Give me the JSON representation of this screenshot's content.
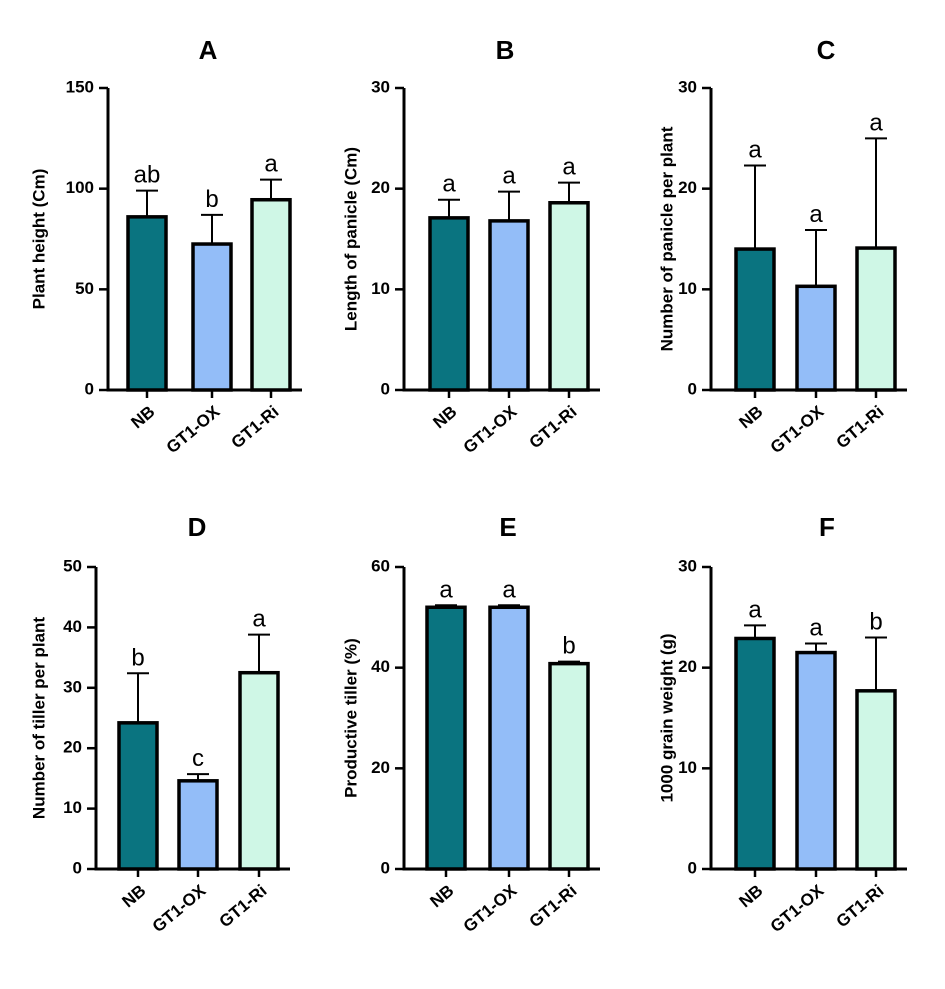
{
  "chart_data": [
    {
      "type": "bar",
      "panel": "A",
      "ylabel": "Plant height (Cm)",
      "ylim": [
        0,
        150
      ],
      "yticks": [
        0,
        50,
        100,
        150
      ],
      "categories": [
        "NB",
        "GT1-OX",
        "GT1-Ri"
      ],
      "values": [
        86,
        72.5,
        94.5
      ],
      "errors": [
        13,
        14.5,
        10
      ],
      "significance": [
        "ab",
        "b",
        "a"
      ],
      "colors": [
        "#0a7480",
        "#93bdf8",
        "#cff7e6"
      ]
    },
    {
      "type": "bar",
      "panel": "B",
      "ylabel": "Length of panicle (Cm)",
      "ylim": [
        0,
        30
      ],
      "yticks": [
        0,
        10,
        20,
        30
      ],
      "categories": [
        "NB",
        "GT1-OX",
        "GT1-Ri"
      ],
      "values": [
        17.1,
        16.8,
        18.6
      ],
      "errors": [
        1.8,
        2.9,
        2.0
      ],
      "significance": [
        "a",
        "a",
        "a"
      ],
      "colors": [
        "#0a7480",
        "#93bdf8",
        "#cff7e6"
      ]
    },
    {
      "type": "bar",
      "panel": "C",
      "ylabel": "Number of panicle per plant",
      "ylim": [
        0,
        30
      ],
      "yticks": [
        0,
        10,
        20,
        30
      ],
      "categories": [
        "NB",
        "GT1-OX",
        "GT1-Ri"
      ],
      "values": [
        14,
        10.3,
        14.1
      ],
      "errors": [
        8.3,
        5.6,
        10.9
      ],
      "significance": [
        "a",
        "a",
        "a"
      ],
      "colors": [
        "#0a7480",
        "#93bdf8",
        "#cff7e6"
      ]
    },
    {
      "type": "bar",
      "panel": "D",
      "ylabel": "Number of tiller  per plant",
      "ylim": [
        0,
        50
      ],
      "yticks": [
        0,
        10,
        20,
        30,
        40,
        50
      ],
      "categories": [
        "NB",
        "GT1-OX",
        "GT1-Ri"
      ],
      "values": [
        24.2,
        14.6,
        32.5
      ],
      "errors": [
        8.2,
        1.1,
        6.3
      ],
      "significance": [
        "b",
        "c",
        "a"
      ],
      "colors": [
        "#0a7480",
        "#93bdf8",
        "#cff7e6"
      ]
    },
    {
      "type": "bar",
      "panel": "E",
      "ylabel": "Productive tiller (%)",
      "ylim": [
        0,
        60
      ],
      "yticks": [
        0,
        20,
        40,
        60
      ],
      "categories": [
        "NB",
        "GT1-OX",
        "GT1-Ri"
      ],
      "values": [
        52,
        52,
        40.8
      ],
      "errors": [
        0.4,
        0.4,
        0.4
      ],
      "significance": [
        "a",
        "a",
        "b"
      ],
      "colors": [
        "#0a7480",
        "#93bdf8",
        "#cff7e6"
      ]
    },
    {
      "type": "bar",
      "panel": "F",
      "ylabel": "1000 grain weight (g)",
      "ylim": [
        0,
        30
      ],
      "yticks": [
        0,
        10,
        20,
        30
      ],
      "categories": [
        "NB",
        "GT1-OX",
        "GT1-Ri"
      ],
      "values": [
        22.9,
        21.5,
        17.7
      ],
      "errors": [
        1.3,
        0.9,
        5.3
      ],
      "significance": [
        "a",
        "a",
        "b"
      ],
      "colors": [
        "#0a7480",
        "#93bdf8",
        "#cff7e6"
      ]
    }
  ]
}
